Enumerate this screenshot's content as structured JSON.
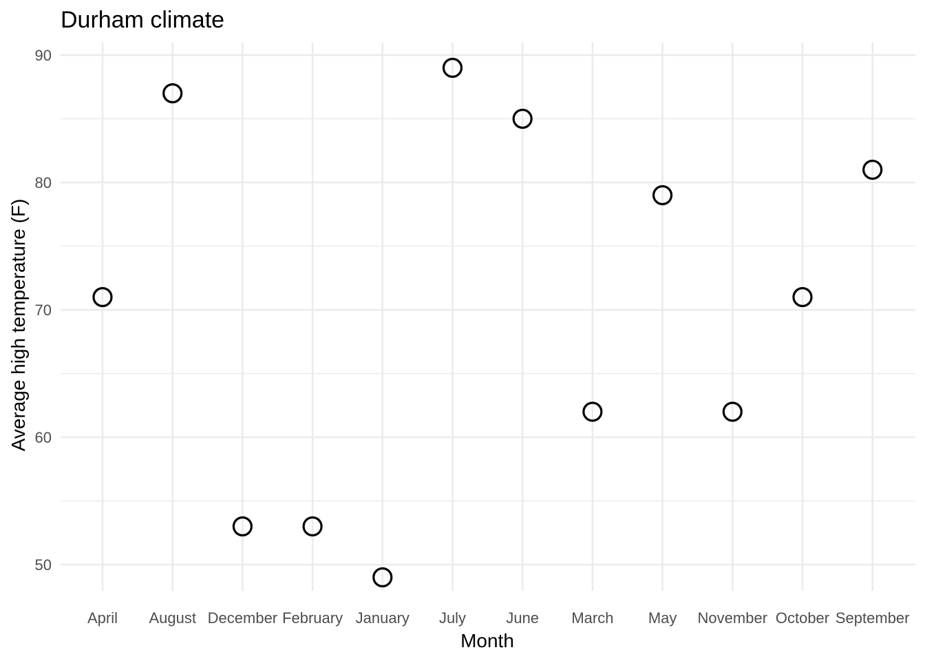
{
  "chart_data": {
    "type": "scatter",
    "title": "Durham climate",
    "xlabel": "Month",
    "ylabel": "Average high temperature (F)",
    "categories": [
      "April",
      "August",
      "December",
      "February",
      "January",
      "July",
      "June",
      "March",
      "May",
      "November",
      "October",
      "September"
    ],
    "values": [
      71,
      87,
      53,
      53,
      49,
      89,
      85,
      62,
      79,
      62,
      71,
      81
    ],
    "yticks": [
      50,
      60,
      70,
      80,
      90
    ],
    "ylim": [
      47.9,
      91.1
    ],
    "grid": true,
    "legend": "none",
    "marker": "open-circle",
    "colors": {
      "point_stroke": "#000000",
      "grid": "#ebebeb",
      "tick_text": "#4d4d4d",
      "background": "#ffffff"
    }
  }
}
